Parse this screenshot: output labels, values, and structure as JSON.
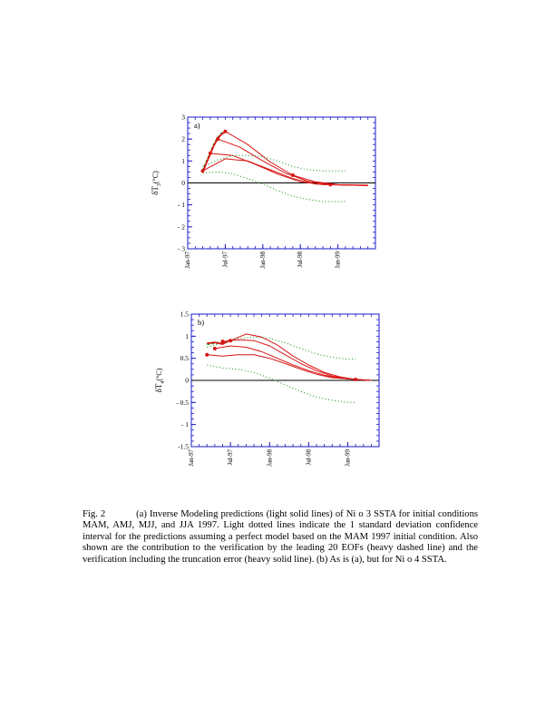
{
  "colors": {
    "axis": "#1a1ac8",
    "prediction": "#d81414",
    "confidence": "#0e8a0e",
    "verification": "#0e8a0e",
    "zero_line": "#000000"
  },
  "chart_data": [
    {
      "type": "line",
      "panel_label": "a)",
      "title": "",
      "xlabel": "",
      "ylabel": "δT",
      "ylabel_sub": "3",
      "ylabel_unit": "(°C)",
      "ylim": [
        -3,
        3
      ],
      "xlim": [
        0,
        25
      ],
      "yticks": [
        {
          "v": 3,
          "t": "3"
        },
        {
          "v": 2,
          "t": "2"
        },
        {
          "v": 1,
          "t": "1"
        },
        {
          "v": 0,
          "t": "0"
        },
        {
          "v": -1,
          "t": "- 1"
        },
        {
          "v": -2,
          "t": "- 2"
        },
        {
          "v": -3,
          "t": "- 3"
        }
      ],
      "xticks": [
        {
          "v": 0,
          "t": "Jan-97"
        },
        {
          "v": 5,
          "t": "Jul-97"
        },
        {
          "v": 10,
          "t": "Jan-98"
        },
        {
          "v": 15,
          "t": "Jul-98"
        },
        {
          "v": 20,
          "t": "Jan-99"
        }
      ],
      "series": [
        {
          "role": "prediction",
          "x": [
            5,
            8,
            11,
            14,
            17,
            20,
            24
          ],
          "y": [
            2.35,
            1.75,
            0.95,
            0.35,
            0.05,
            -0.08,
            -0.1
          ]
        },
        {
          "role": "prediction",
          "x": [
            4,
            7,
            10,
            13,
            16,
            19,
            24
          ],
          "y": [
            2.0,
            1.62,
            1.0,
            0.45,
            0.08,
            -0.08,
            -0.12
          ]
        },
        {
          "role": "prediction",
          "x": [
            3,
            6,
            9,
            12,
            15,
            18,
            24
          ],
          "y": [
            1.35,
            1.25,
            0.85,
            0.4,
            0.05,
            -0.08,
            -0.12
          ]
        },
        {
          "role": "prediction",
          "x": [
            2,
            5,
            8,
            11,
            14,
            17,
            24
          ],
          "y": [
            0.55,
            1.1,
            1.0,
            0.6,
            0.2,
            -0.05,
            -0.12
          ]
        },
        {
          "role": "confidence_upper",
          "x": [
            2,
            4,
            6,
            8,
            10,
            12,
            14,
            16,
            18,
            21
          ],
          "y": [
            0.75,
            1.05,
            1.25,
            1.25,
            1.2,
            1.0,
            0.75,
            0.6,
            0.55,
            0.55
          ]
        },
        {
          "role": "confidence_lower",
          "x": [
            2,
            4,
            6,
            8,
            10,
            12,
            14,
            16,
            18,
            21
          ],
          "y": [
            0.45,
            0.5,
            0.42,
            0.2,
            -0.05,
            -0.35,
            -0.6,
            -0.75,
            -0.85,
            -0.85
          ]
        },
        {
          "role": "verification_eofs",
          "x": [
            2,
            2.5,
            3,
            3.5,
            4,
            4.5,
            5
          ],
          "y": [
            0.55,
            0.95,
            1.35,
            1.75,
            2.05,
            2.25,
            2.35
          ]
        },
        {
          "role": "verification_total",
          "x": [
            2,
            2.5,
            3,
            3.5,
            4,
            4.5,
            5
          ],
          "y": [
            0.5,
            0.92,
            1.32,
            1.72,
            2.02,
            2.22,
            2.32
          ]
        }
      ],
      "markers": [
        {
          "x": 2,
          "y": 0.55
        },
        {
          "x": 3,
          "y": 1.35
        },
        {
          "x": 4,
          "y": 2.0
        },
        {
          "x": 5,
          "y": 2.35
        },
        {
          "x": 14,
          "y": 0.35
        },
        {
          "x": 19,
          "y": -0.08
        }
      ]
    },
    {
      "type": "line",
      "panel_label": "b)",
      "title": "",
      "xlabel": "",
      "ylabel": "δT",
      "ylabel_sub": "4",
      "ylabel_unit": "(°C)",
      "ylim": [
        -1.5,
        1.5
      ],
      "xlim": [
        0,
        24
      ],
      "yticks": [
        {
          "v": 1.5,
          "t": "1.5"
        },
        {
          "v": 1,
          "t": "1"
        },
        {
          "v": 0.5,
          "t": "0.5"
        },
        {
          "v": 0,
          "t": "0"
        },
        {
          "v": -0.5,
          "t": "- 0.5"
        },
        {
          "v": -1,
          "t": "- 1"
        },
        {
          "v": -1.5,
          "t": "-1.5"
        }
      ],
      "xticks": [
        {
          "v": 0,
          "t": "Jan-97"
        },
        {
          "v": 5,
          "t": "Jul-97"
        },
        {
          "v": 10,
          "t": "Jan-98"
        },
        {
          "v": 15,
          "t": "Jul-98"
        },
        {
          "v": 20,
          "t": "Jan-99"
        }
      ],
      "series": [
        {
          "role": "prediction",
          "x": [
            5,
            7,
            9,
            11,
            13,
            15,
            17,
            19,
            21,
            23
          ],
          "y": [
            0.9,
            1.05,
            0.98,
            0.8,
            0.55,
            0.35,
            0.18,
            0.08,
            0.02,
            0.0
          ]
        },
        {
          "role": "prediction",
          "x": [
            4,
            6,
            8,
            10,
            12,
            14,
            16,
            18,
            20,
            23
          ],
          "y": [
            0.88,
            0.92,
            0.9,
            0.78,
            0.58,
            0.38,
            0.22,
            0.1,
            0.03,
            0.0
          ]
        },
        {
          "role": "prediction",
          "x": [
            3,
            5,
            7,
            9,
            11,
            13,
            15,
            17,
            19,
            23
          ],
          "y": [
            0.72,
            0.78,
            0.75,
            0.65,
            0.5,
            0.35,
            0.22,
            0.12,
            0.05,
            0.0
          ]
        },
        {
          "role": "prediction",
          "x": [
            2,
            4,
            6,
            8,
            10,
            12,
            14,
            16,
            18,
            23
          ],
          "y": [
            0.58,
            0.55,
            0.58,
            0.58,
            0.5,
            0.38,
            0.25,
            0.14,
            0.06,
            0.0
          ]
        },
        {
          "role": "confidence_upper",
          "x": [
            2,
            4,
            6,
            8,
            10,
            12,
            14,
            16,
            18,
            20,
            21
          ],
          "y": [
            0.75,
            0.85,
            0.95,
            0.98,
            0.95,
            0.85,
            0.72,
            0.6,
            0.52,
            0.48,
            0.48
          ]
        },
        {
          "role": "confidence_lower",
          "x": [
            2,
            4,
            6,
            8,
            10,
            12,
            14,
            16,
            18,
            20,
            21
          ],
          "y": [
            0.35,
            0.28,
            0.25,
            0.18,
            0.05,
            -0.1,
            -0.25,
            -0.38,
            -0.45,
            -0.5,
            -0.5
          ]
        },
        {
          "role": "verification_eofs",
          "x": [
            2,
            3,
            4,
            5
          ],
          "y": [
            0.82,
            0.85,
            0.84,
            0.9
          ]
        },
        {
          "role": "verification_total",
          "x": [
            2,
            3,
            4,
            5
          ],
          "y": [
            0.84,
            0.86,
            0.82,
            0.92
          ]
        }
      ],
      "markers": [
        {
          "x": 2,
          "y": 0.58
        },
        {
          "x": 3,
          "y": 0.72
        },
        {
          "x": 4,
          "y": 0.88
        },
        {
          "x": 5,
          "y": 0.9
        },
        {
          "x": 21,
          "y": 0.02
        }
      ]
    }
  ],
  "caption": {
    "label": "Fig. 2",
    "text": "(a) Inverse Modeling predictions (light solid lines) of Ni o 3 SSTA for initial conditions MAM, AMJ, MJJ, and JJA 1997.  Light dotted lines indicate the 1 standard deviation confidence interval for the predictions assuming a perfect model based on the MAM 1997 initial condition. Also shown are the contribution to the verification by the leading 20 EOFs (heavy dashed line) and the verification including the truncation error (heavy solid line).  (b)  As is (a), but for Ni o 4 SSTA."
  }
}
